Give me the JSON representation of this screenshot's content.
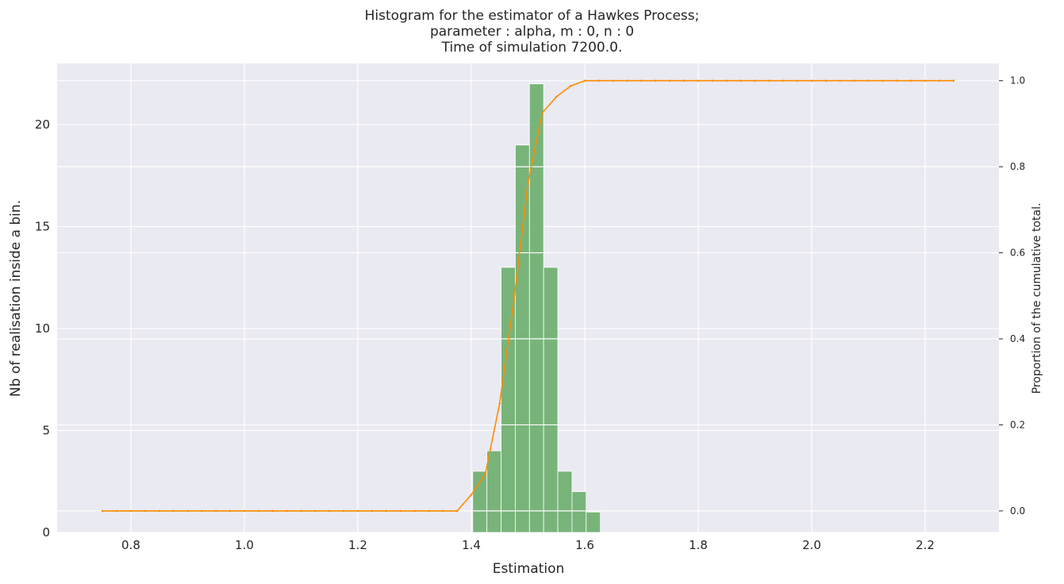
{
  "chart_data": {
    "type": "bar",
    "title": [
      "Histogram for the estimator of a Hawkes Process;",
      "parameter : alpha, m : 0, n : 0",
      "Time of simulation 7200.0."
    ],
    "xlabel": "Estimation",
    "ylabel": "Nb of realisation inside a bin.",
    "ylabel_right": "Proportion of the cumulative total.",
    "xlim": [
      0.67,
      2.33
    ],
    "ylim": [
      0,
      23
    ],
    "ylim_right": [
      -0.05,
      1.04
    ],
    "xticks": [
      "0.8",
      "1.0",
      "1.2",
      "1.4",
      "1.6",
      "1.8",
      "2.0",
      "2.2"
    ],
    "yticks": [
      "0",
      "5",
      "10",
      "15",
      "20"
    ],
    "yticks_right": [
      "0.0",
      "0.2",
      "0.4",
      "0.6",
      "0.8",
      "1.0"
    ],
    "grid": true,
    "histogram": {
      "name": "Nb of realisation",
      "color": "#5fa85f",
      "bins": [
        {
          "x0": 1.4025,
          "x1": 1.4275,
          "count": 3
        },
        {
          "x0": 1.4275,
          "x1": 1.4525,
          "count": 4
        },
        {
          "x0": 1.4525,
          "x1": 1.4775,
          "count": 13
        },
        {
          "x0": 1.4775,
          "x1": 1.5025,
          "count": 19
        },
        {
          "x0": 1.5025,
          "x1": 1.5275,
          "count": 22
        },
        {
          "x0": 1.5275,
          "x1": 1.5525,
          "count": 13
        },
        {
          "x0": 1.5525,
          "x1": 1.5775,
          "count": 3
        },
        {
          "x0": 1.5775,
          "x1": 1.6025,
          "count": 2
        },
        {
          "x0": 1.6025,
          "x1": 1.6275,
          "count": 1
        }
      ]
    },
    "cumulative": {
      "name": "Proportion of the cumulative total",
      "color": "#ff8c00",
      "x": [
        0.75,
        0.775,
        0.8,
        0.825,
        0.85,
        0.875,
        0.9,
        0.925,
        0.95,
        0.975,
        1.0,
        1.025,
        1.05,
        1.075,
        1.1,
        1.125,
        1.15,
        1.175,
        1.2,
        1.225,
        1.25,
        1.275,
        1.3,
        1.325,
        1.35,
        1.375,
        1.4,
        1.425,
        1.45,
        1.475,
        1.5,
        1.525,
        1.55,
        1.575,
        1.6,
        1.625,
        1.65,
        1.675,
        1.7,
        1.725,
        1.75,
        1.775,
        1.8,
        1.825,
        1.85,
        1.875,
        1.9,
        1.925,
        1.95,
        1.975,
        2.0,
        2.025,
        2.05,
        2.075,
        2.1,
        2.125,
        2.15,
        2.175,
        2.2,
        2.225,
        2.25
      ],
      "y": [
        0,
        0,
        0,
        0,
        0,
        0,
        0,
        0,
        0,
        0,
        0,
        0,
        0,
        0,
        0,
        0,
        0,
        0,
        0,
        0,
        0,
        0,
        0,
        0,
        0,
        0,
        0.0375,
        0.0875,
        0.25,
        0.4875,
        0.7625,
        0.925,
        0.9625,
        0.9875,
        1.0,
        1.0,
        1.0,
        1.0,
        1.0,
        1.0,
        1.0,
        1.0,
        1.0,
        1.0,
        1.0,
        1.0,
        1.0,
        1.0,
        1.0,
        1.0,
        1.0,
        1.0,
        1.0,
        1.0,
        1.0,
        1.0,
        1.0,
        1.0,
        1.0,
        1.0,
        1.0
      ]
    }
  }
}
